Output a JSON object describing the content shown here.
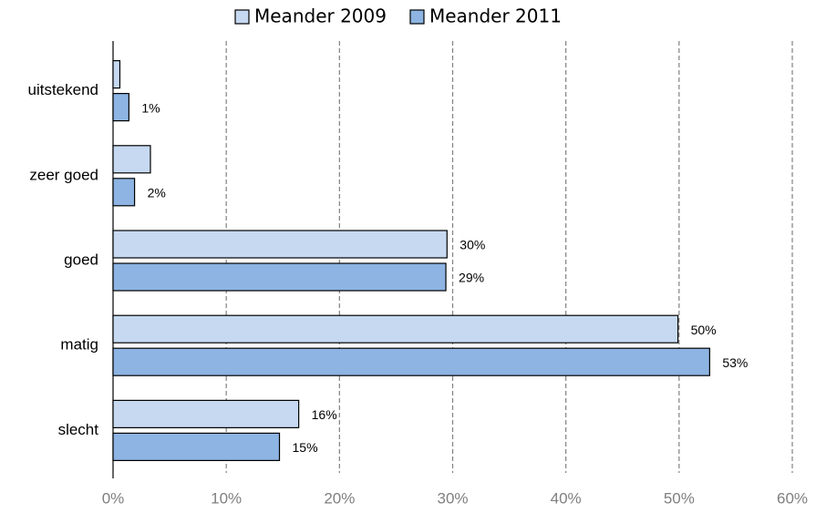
{
  "chart_data": {
    "type": "hbar",
    "categories": [
      "uitstekend",
      "zeer goed",
      "goed",
      "matig",
      "slecht"
    ],
    "series": [
      {
        "name": "Meander 2009",
        "color": "#c6d9f1",
        "values": [
          0.6,
          3.3,
          29.5,
          49.9,
          16.4
        ],
        "value_labels": [
          null,
          null,
          "30%",
          "50%",
          "16%"
        ]
      },
      {
        "name": "Meander 2011",
        "color": "#8db4e2",
        "values": [
          1.4,
          1.9,
          29.4,
          52.7,
          14.7
        ],
        "value_labels": [
          "1%",
          "2%",
          "29%",
          "53%",
          "15%"
        ]
      }
    ],
    "xlim": [
      0,
      60
    ],
    "xticks": [
      {
        "value": 0,
        "label": "0%"
      },
      {
        "value": 10,
        "label": "10%"
      },
      {
        "value": 20,
        "label": "20%"
      },
      {
        "value": 30,
        "label": "30%"
      },
      {
        "value": 40,
        "label": "40%"
      },
      {
        "value": 50,
        "label": "50%"
      },
      {
        "value": 60,
        "label": "60%"
      }
    ],
    "grid": true,
    "legend": "top"
  }
}
